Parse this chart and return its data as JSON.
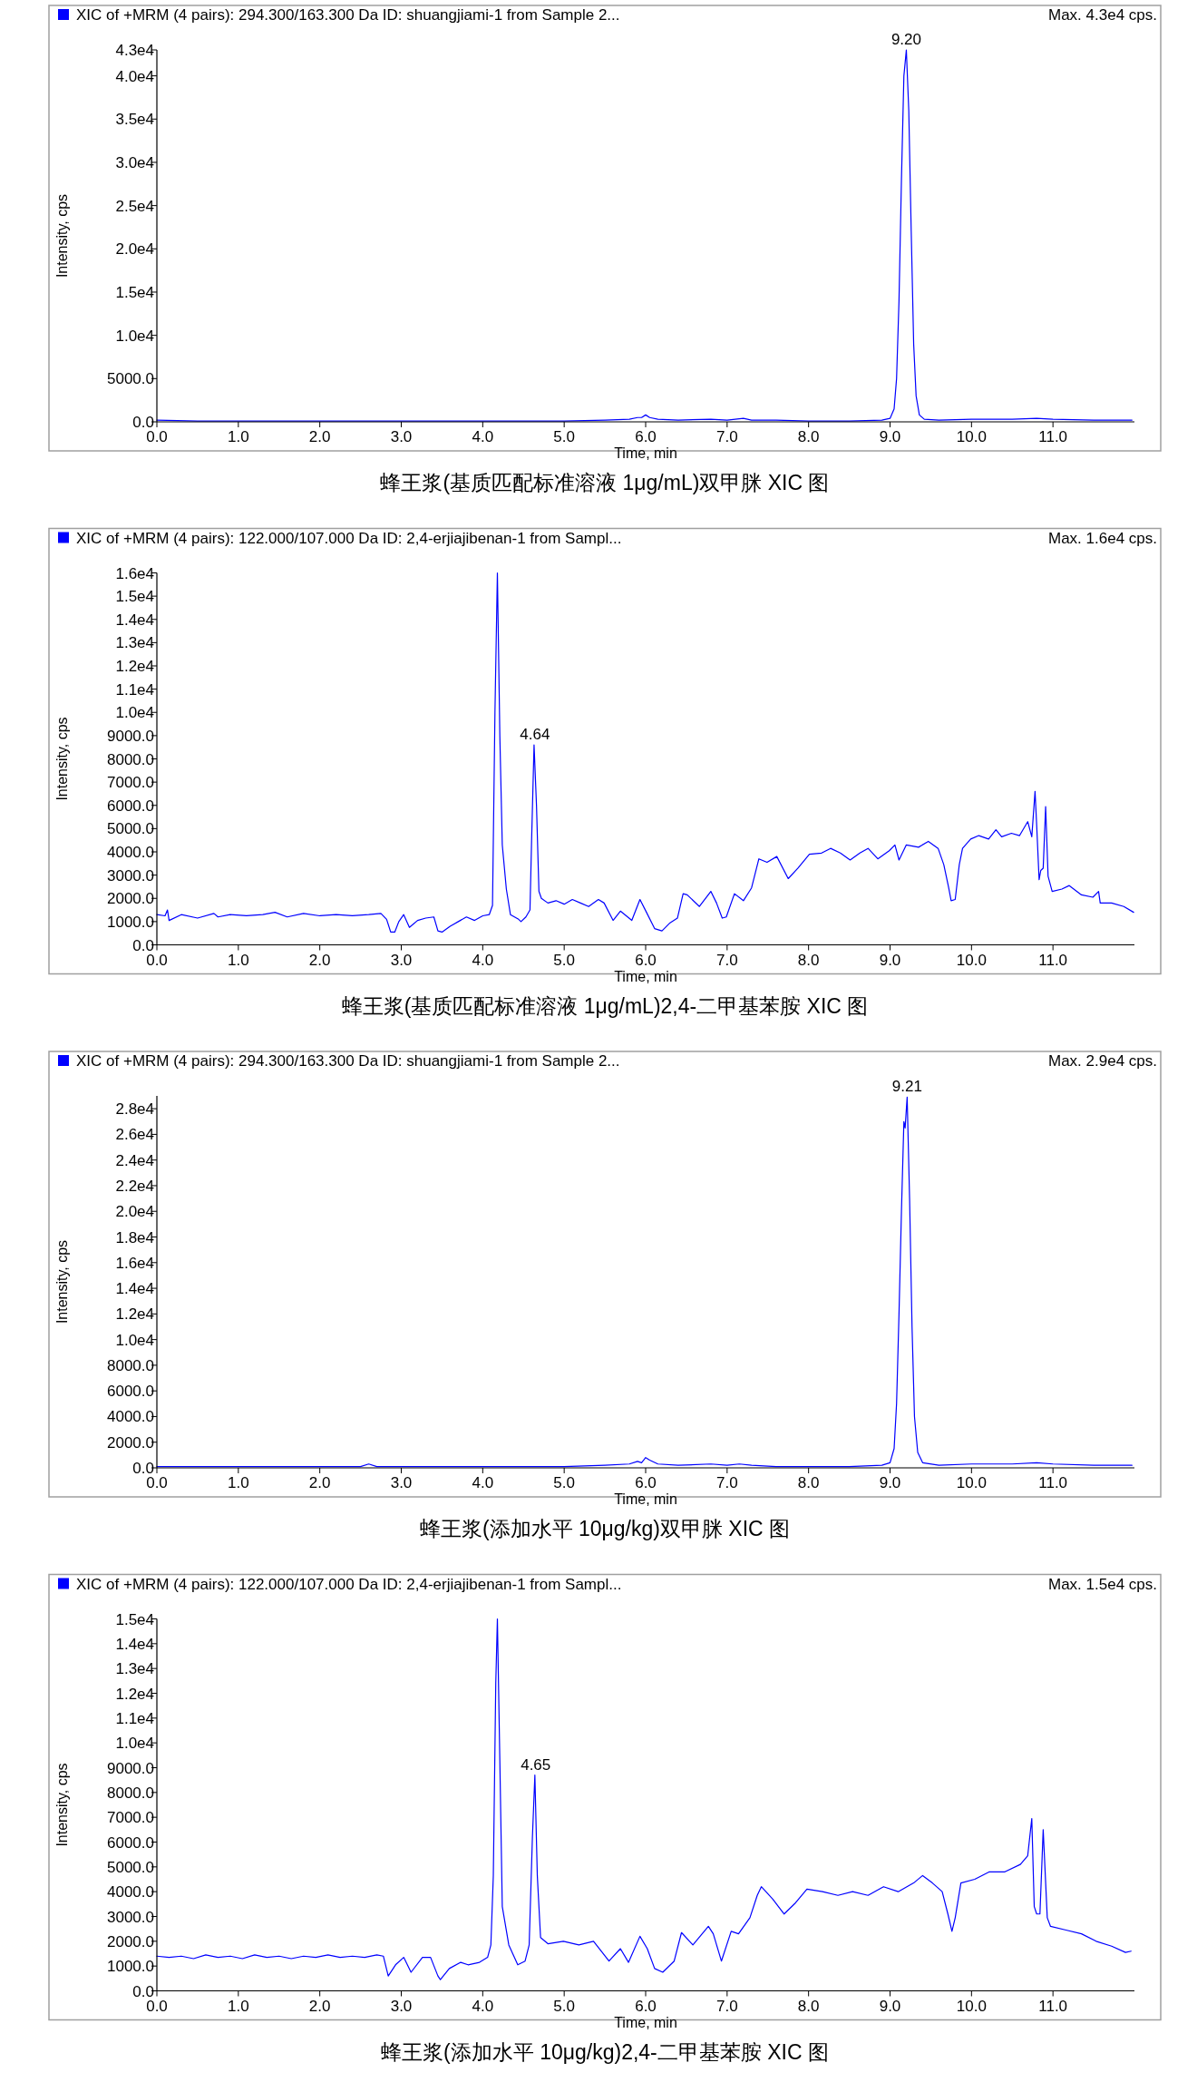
{
  "chart_data": [
    {
      "type": "line",
      "legend": "top left",
      "title": "蜂王浆(基质匹配标准溶液 1μg/mL)双甲脒 XIC 图",
      "xlabel": "Time, min",
      "ylabel": "Intensity, cps",
      "annotations": [
        "Max. 4.3e4 cps.",
        {
          "text": "9.20",
          "x": 9.2,
          "y": 43000
        }
      ],
      "xlim": [
        0,
        12
      ],
      "xticks": [
        {
          "value": 0,
          "label": "0.0"
        },
        {
          "value": 1,
          "label": "1.0"
        },
        {
          "value": 2,
          "label": "2.0"
        },
        {
          "value": 3,
          "label": "3.0"
        },
        {
          "value": 4,
          "label": "4.0"
        },
        {
          "value": 5,
          "label": "5.0"
        },
        {
          "value": 6,
          "label": "6.0"
        },
        {
          "value": 7,
          "label": "7.0"
        },
        {
          "value": 8,
          "label": "8.0"
        },
        {
          "value": 9,
          "label": "9.0"
        },
        {
          "value": 10,
          "label": "10.0"
        },
        {
          "value": 11,
          "label": "11.0"
        }
      ],
      "ylim": [
        0,
        43000
      ],
      "yticks": [
        {
          "value": 0,
          "label": "0.0"
        },
        {
          "value": 5000,
          "label": "5000.0"
        },
        {
          "value": 10000,
          "label": "1.0e4"
        },
        {
          "value": 15000,
          "label": "1.5e4"
        },
        {
          "value": 20000,
          "label": "2.0e4"
        },
        {
          "value": 25000,
          "label": "2.5e4"
        },
        {
          "value": 30000,
          "label": "3.0e4"
        },
        {
          "value": 35000,
          "label": "3.5e4"
        },
        {
          "value": 40000,
          "label": "4.0e4"
        },
        {
          "value": 43000,
          "label": "4.3e4"
        }
      ],
      "series": [
        {
          "name": "XIC of +MRM (4 pairs): 294.300/163.300 Da ID: shuangjiami-1 from Sample 2...",
          "color": "#0000ff",
          "x": [
            0,
            0.5,
            1,
            1.5,
            2,
            2.5,
            3,
            3.5,
            4,
            4.5,
            5,
            5.5,
            5.8,
            5.9,
            5.95,
            6,
            6.05,
            6.15,
            6.4,
            6.8,
            7,
            7.2,
            7.3,
            7.6,
            8,
            8.5,
            8.9,
            9,
            9.05,
            9.08,
            9.11,
            9.14,
            9.17,
            9.2,
            9.23,
            9.26,
            9.29,
            9.32,
            9.36,
            9.42,
            9.6,
            10,
            10.3,
            10.5,
            10.8,
            11,
            11.5,
            11.97
          ],
          "values": [
            200,
            100,
            100,
            100,
            100,
            100,
            100,
            100,
            100,
            100,
            100,
            200,
            300,
            500,
            500,
            800,
            500,
            300,
            200,
            300,
            200,
            400,
            200,
            200,
            100,
            100,
            200,
            400,
            1500,
            5000,
            14000,
            28000,
            40000,
            43000,
            36000,
            22000,
            9000,
            3000,
            800,
            300,
            200,
            300,
            300,
            300,
            400,
            300,
            200,
            200
          ]
        }
      ]
    },
    {
      "type": "line",
      "legend": "top left",
      "title": "蜂王浆(基质匹配标准溶液 1μg/mL)2,4-二甲基苯胺 XIC 图",
      "xlabel": "Time, min",
      "ylabel": "Intensity, cps",
      "annotations": [
        "Max. 1.6e4 cps.",
        {
          "text": "4.64",
          "x": 4.64,
          "y": 8600
        }
      ],
      "xlim": [
        0,
        12
      ],
      "xticks": [
        {
          "value": 0,
          "label": "0.0"
        },
        {
          "value": 1,
          "label": "1.0"
        },
        {
          "value": 2,
          "label": "2.0"
        },
        {
          "value": 3,
          "label": "3.0"
        },
        {
          "value": 4,
          "label": "4.0"
        },
        {
          "value": 5,
          "label": "5.0"
        },
        {
          "value": 6,
          "label": "6.0"
        },
        {
          "value": 7,
          "label": "7.0"
        },
        {
          "value": 8,
          "label": "8.0"
        },
        {
          "value": 9,
          "label": "9.0"
        },
        {
          "value": 10,
          "label": "10.0"
        },
        {
          "value": 11,
          "label": "11.0"
        }
      ],
      "ylim": [
        0,
        16000
      ],
      "yticks": [
        {
          "value": 0,
          "label": "0.0"
        },
        {
          "value": 1000,
          "label": "1000.0"
        },
        {
          "value": 2000,
          "label": "2000.0"
        },
        {
          "value": 3000,
          "label": "3000.0"
        },
        {
          "value": 4000,
          "label": "4000.0"
        },
        {
          "value": 5000,
          "label": "5000.0"
        },
        {
          "value": 6000,
          "label": "6000.0"
        },
        {
          "value": 7000,
          "label": "7000.0"
        },
        {
          "value": 8000,
          "label": "8000.0"
        },
        {
          "value": 9000,
          "label": "9000.0"
        },
        {
          "value": 10000,
          "label": "1.0e4"
        },
        {
          "value": 11000,
          "label": "1.1e4"
        },
        {
          "value": 12000,
          "label": "1.2e4"
        },
        {
          "value": 13000,
          "label": "1.3e4"
        },
        {
          "value": 14000,
          "label": "1.4e4"
        },
        {
          "value": 15000,
          "label": "1.5e4"
        },
        {
          "value": 16000,
          "label": "1.6e4"
        }
      ],
      "series": [
        {
          "name": "XIC of +MRM (4 pairs): 122.000/107.000 Da ID: 2,4-erjiajibenan-1 from Sampl...",
          "color": "#0000ff",
          "x": [
            0,
            0.1,
            0.13,
            0.15,
            0.3,
            0.5,
            0.7,
            0.75,
            0.9,
            1.1,
            1.3,
            1.45,
            1.6,
            1.8,
            2,
            2.2,
            2.4,
            2.6,
            2.75,
            2.82,
            2.87,
            2.92,
            2.97,
            3.03,
            3.1,
            3.2,
            3.3,
            3.4,
            3.45,
            3.5,
            3.6,
            3.7,
            3.8,
            3.9,
            4,
            4.08,
            4.12,
            4.15,
            4.18,
            4.21,
            4.24,
            4.29,
            4.34,
            4.44,
            4.47,
            4.53,
            4.58,
            4.6,
            4.63,
            4.66,
            4.69,
            4.72,
            4.8,
            4.9,
            5,
            5.1,
            5.2,
            5.3,
            5.42,
            5.49,
            5.6,
            5.69,
            5.83,
            5.93,
            6.01,
            6.11,
            6.2,
            6.3,
            6.39,
            6.46,
            6.51,
            6.66,
            6.8,
            6.87,
            6.94,
            6.99,
            7.09,
            7.2,
            7.3,
            7.39,
            7.49,
            7.61,
            7.75,
            7.87,
            8.01,
            8.16,
            8.27,
            8.39,
            8.51,
            8.63,
            8.73,
            8.85,
            8.99,
            9.06,
            9.11,
            9.2,
            9.35,
            9.47,
            9.59,
            9.66,
            9.72,
            9.75,
            9.8,
            9.85,
            9.89,
            9.99,
            10.09,
            10.21,
            10.3,
            10.37,
            10.49,
            10.59,
            10.69,
            10.74,
            10.78,
            10.8,
            10.83,
            10.85,
            10.88,
            10.91,
            10.94,
            10.99,
            11.11,
            11.2,
            11.35,
            11.49,
            11.56,
            11.58,
            11.72,
            11.87,
            11.99
          ],
          "values": [
            1300,
            1250,
            1500,
            1050,
            1300,
            1150,
            1350,
            1200,
            1300,
            1250,
            1300,
            1400,
            1200,
            1350,
            1250,
            1300,
            1250,
            1300,
            1350,
            1100,
            550,
            550,
            1000,
            1300,
            750,
            1050,
            1150,
            1200,
            600,
            550,
            800,
            1000,
            1200,
            1050,
            1250,
            1300,
            1700,
            10000,
            16000,
            9000,
            4300,
            2400,
            1300,
            1100,
            1000,
            1200,
            1500,
            4500,
            8600,
            6000,
            2300,
            2000,
            1800,
            1900,
            1750,
            1950,
            1800,
            1650,
            1950,
            1800,
            1050,
            1450,
            1050,
            1950,
            1400,
            700,
            600,
            950,
            1150,
            2200,
            2150,
            1650,
            2300,
            1800,
            1150,
            1200,
            2200,
            1900,
            2450,
            3700,
            3550,
            3800,
            2850,
            3300,
            3900,
            3950,
            4150,
            3950,
            3650,
            3950,
            4150,
            3700,
            4050,
            4300,
            3650,
            4300,
            4200,
            4450,
            4150,
            3450,
            2450,
            1900,
            1950,
            3450,
            4150,
            4550,
            4700,
            4550,
            4950,
            4650,
            4800,
            4700,
            5300,
            4650,
            6600,
            5150,
            2800,
            3200,
            3300,
            5950,
            2950,
            2300,
            2400,
            2550,
            2150,
            2050,
            2300,
            1800,
            1800,
            1650,
            1400
          ]
        }
      ]
    },
    {
      "type": "line",
      "legend": "top left",
      "title": "蜂王浆(添加水平 10μg/kg)双甲脒 XIC 图",
      "xlabel": "Time, min",
      "ylabel": "Intensity, cps",
      "annotations": [
        "Max. 2.9e4 cps.",
        {
          "text": "9.21",
          "x": 9.21,
          "y": 28900
        }
      ],
      "xlim": [
        0,
        12
      ],
      "xticks": [
        {
          "value": 0,
          "label": "0.0"
        },
        {
          "value": 1,
          "label": "1.0"
        },
        {
          "value": 2,
          "label": "2.0"
        },
        {
          "value": 3,
          "label": "3.0"
        },
        {
          "value": 4,
          "label": "4.0"
        },
        {
          "value": 5,
          "label": "5.0"
        },
        {
          "value": 6,
          "label": "6.0"
        },
        {
          "value": 7,
          "label": "7.0"
        },
        {
          "value": 8,
          "label": "8.0"
        },
        {
          "value": 9,
          "label": "9.0"
        },
        {
          "value": 10,
          "label": "10.0"
        },
        {
          "value": 11,
          "label": "11.0"
        }
      ],
      "ylim": [
        0,
        29000
      ],
      "yticks": [
        {
          "value": 0,
          "label": "0.0"
        },
        {
          "value": 2000,
          "label": "2000.0"
        },
        {
          "value": 4000,
          "label": "4000.0"
        },
        {
          "value": 6000,
          "label": "6000.0"
        },
        {
          "value": 8000,
          "label": "8000.0"
        },
        {
          "value": 10000,
          "label": "1.0e4"
        },
        {
          "value": 12000,
          "label": "1.2e4"
        },
        {
          "value": 14000,
          "label": "1.4e4"
        },
        {
          "value": 16000,
          "label": "1.6e4"
        },
        {
          "value": 18000,
          "label": "1.8e4"
        },
        {
          "value": 20000,
          "label": "2.0e4"
        },
        {
          "value": 22000,
          "label": "2.2e4"
        },
        {
          "value": 24000,
          "label": "2.4e4"
        },
        {
          "value": 26000,
          "label": "2.6e4"
        },
        {
          "value": 28000,
          "label": "2.8e4"
        }
      ],
      "series": [
        {
          "name": "XIC of +MRM (4 pairs): 294.300/163.300 Da ID: shuangjiami-1 from Sample 2...",
          "color": "#0000ff",
          "x": [
            0,
            0.5,
            1,
            1.5,
            2,
            2.5,
            2.6,
            2.7,
            3,
            3.5,
            4,
            4.5,
            5,
            5.5,
            5.8,
            5.9,
            5.95,
            6,
            6.05,
            6.15,
            6.4,
            6.8,
            7,
            7.15,
            7.3,
            7.6,
            8,
            8.5,
            8.9,
            9,
            9.05,
            9.08,
            9.11,
            9.14,
            9.17,
            9.185,
            9.21,
            9.24,
            9.27,
            9.3,
            9.34,
            9.4,
            9.6,
            10,
            10.3,
            10.5,
            10.8,
            11,
            11.5,
            11.97
          ],
          "values": [
            100,
            100,
            100,
            100,
            100,
            100,
            300,
            100,
            100,
            100,
            100,
            100,
            100,
            200,
            300,
            500,
            400,
            800,
            600,
            300,
            200,
            300,
            200,
            300,
            200,
            100,
            100,
            100,
            200,
            400,
            1500,
            5000,
            12000,
            20000,
            27000,
            26500,
            28900,
            21000,
            11000,
            4000,
            1200,
            400,
            200,
            300,
            300,
            300,
            400,
            300,
            200,
            200
          ]
        }
      ]
    },
    {
      "type": "line",
      "legend": "top left",
      "title": "蜂王浆(添加水平 10μg/kg)2,4-二甲基苯胺 XIC 图",
      "xlabel": "Time, min",
      "ylabel": "Intensity, cps",
      "annotations": [
        "Max. 1.5e4 cps.",
        {
          "text": "4.65",
          "x": 4.65,
          "y": 8700
        }
      ],
      "xlim": [
        0,
        12
      ],
      "xticks": [
        {
          "value": 0,
          "label": "0.0"
        },
        {
          "value": 1,
          "label": "1.0"
        },
        {
          "value": 2,
          "label": "2.0"
        },
        {
          "value": 3,
          "label": "3.0"
        },
        {
          "value": 4,
          "label": "4.0"
        },
        {
          "value": 5,
          "label": "5.0"
        },
        {
          "value": 6,
          "label": "6.0"
        },
        {
          "value": 7,
          "label": "7.0"
        },
        {
          "value": 8,
          "label": "8.0"
        },
        {
          "value": 9,
          "label": "9.0"
        },
        {
          "value": 10,
          "label": "10.0"
        },
        {
          "value": 11,
          "label": "11.0"
        }
      ],
      "ylim": [
        0,
        15000
      ],
      "yticks": [
        {
          "value": 0,
          "label": "0.0"
        },
        {
          "value": 1000,
          "label": "1000.0"
        },
        {
          "value": 2000,
          "label": "2000.0"
        },
        {
          "value": 3000,
          "label": "3000.0"
        },
        {
          "value": 4000,
          "label": "4000.0"
        },
        {
          "value": 5000,
          "label": "5000.0"
        },
        {
          "value": 6000,
          "label": "6000.0"
        },
        {
          "value": 7000,
          "label": "7000.0"
        },
        {
          "value": 8000,
          "label": "8000.0"
        },
        {
          "value": 9000,
          "label": "9000.0"
        },
        {
          "value": 10000,
          "label": "1.0e4"
        },
        {
          "value": 11000,
          "label": "1.1e4"
        },
        {
          "value": 12000,
          "label": "1.2e4"
        },
        {
          "value": 13000,
          "label": "1.3e4"
        },
        {
          "value": 14000,
          "label": "1.4e4"
        },
        {
          "value": 15000,
          "label": "1.5e4"
        }
      ],
      "series": [
        {
          "name": "XIC of +MRM (4 pairs): 122.000/107.000 Da ID: 2,4-erjiajibenan-1 from Sampl...",
          "color": "#0000ff",
          "x": [
            0,
            0.15,
            0.3,
            0.45,
            0.6,
            0.75,
            0.9,
            1.05,
            1.2,
            1.35,
            1.5,
            1.65,
            1.8,
            1.95,
            2.1,
            2.25,
            2.4,
            2.55,
            2.7,
            2.78,
            2.84,
            2.93,
            3.03,
            3.12,
            3.26,
            3.36,
            3.45,
            3.48,
            3.59,
            3.73,
            3.82,
            3.96,
            4.06,
            4.1,
            4.13,
            4.16,
            4.18,
            4.21,
            4.24,
            4.32,
            4.43,
            4.52,
            4.57,
            4.61,
            4.64,
            4.67,
            4.71,
            4.8,
            4.99,
            5.18,
            5.36,
            5.55,
            5.69,
            5.79,
            5.93,
            6.02,
            6.11,
            6.21,
            6.35,
            6.44,
            6.58,
            6.77,
            6.83,
            6.93,
            7.05,
            7.14,
            7.28,
            7.37,
            7.42,
            7.56,
            7.7,
            7.84,
            7.98,
            8.17,
            8.36,
            8.54,
            8.73,
            8.92,
            9.1,
            9.29,
            9.4,
            9.52,
            9.64,
            9.71,
            9.76,
            9.8,
            9.87,
            10.04,
            10.22,
            10.41,
            10.6,
            10.69,
            10.74,
            10.77,
            10.8,
            10.84,
            10.88,
            10.93,
            10.97,
            11.16,
            11.35,
            11.53,
            11.72,
            11.89,
            11.96
          ],
          "values": [
            1400,
            1350,
            1400,
            1300,
            1450,
            1350,
            1400,
            1300,
            1450,
            1350,
            1400,
            1300,
            1400,
            1350,
            1450,
            1350,
            1400,
            1350,
            1450,
            1400,
            600,
            1050,
            1350,
            750,
            1350,
            1350,
            600,
            450,
            900,
            1150,
            1050,
            1150,
            1350,
            1850,
            4650,
            12400,
            15000,
            9300,
            3400,
            1850,
            1050,
            1200,
            1850,
            6200,
            8700,
            4650,
            2150,
            1900,
            2000,
            1850,
            2000,
            1200,
            1700,
            1150,
            2200,
            1700,
            900,
            750,
            1200,
            2350,
            1850,
            2600,
            2300,
            1200,
            2400,
            2300,
            2950,
            3850,
            4200,
            3700,
            3100,
            3550,
            4100,
            4000,
            3850,
            4000,
            3850,
            4200,
            4000,
            4350,
            4650,
            4350,
            4000,
            3100,
            2400,
            2950,
            4350,
            4500,
            4800,
            4800,
            5100,
            5450,
            6950,
            3400,
            3100,
            3100,
            6500,
            2950,
            2600,
            2450,
            2300,
            2000,
            1800,
            1550,
            1600
          ]
        }
      ]
    }
  ]
}
